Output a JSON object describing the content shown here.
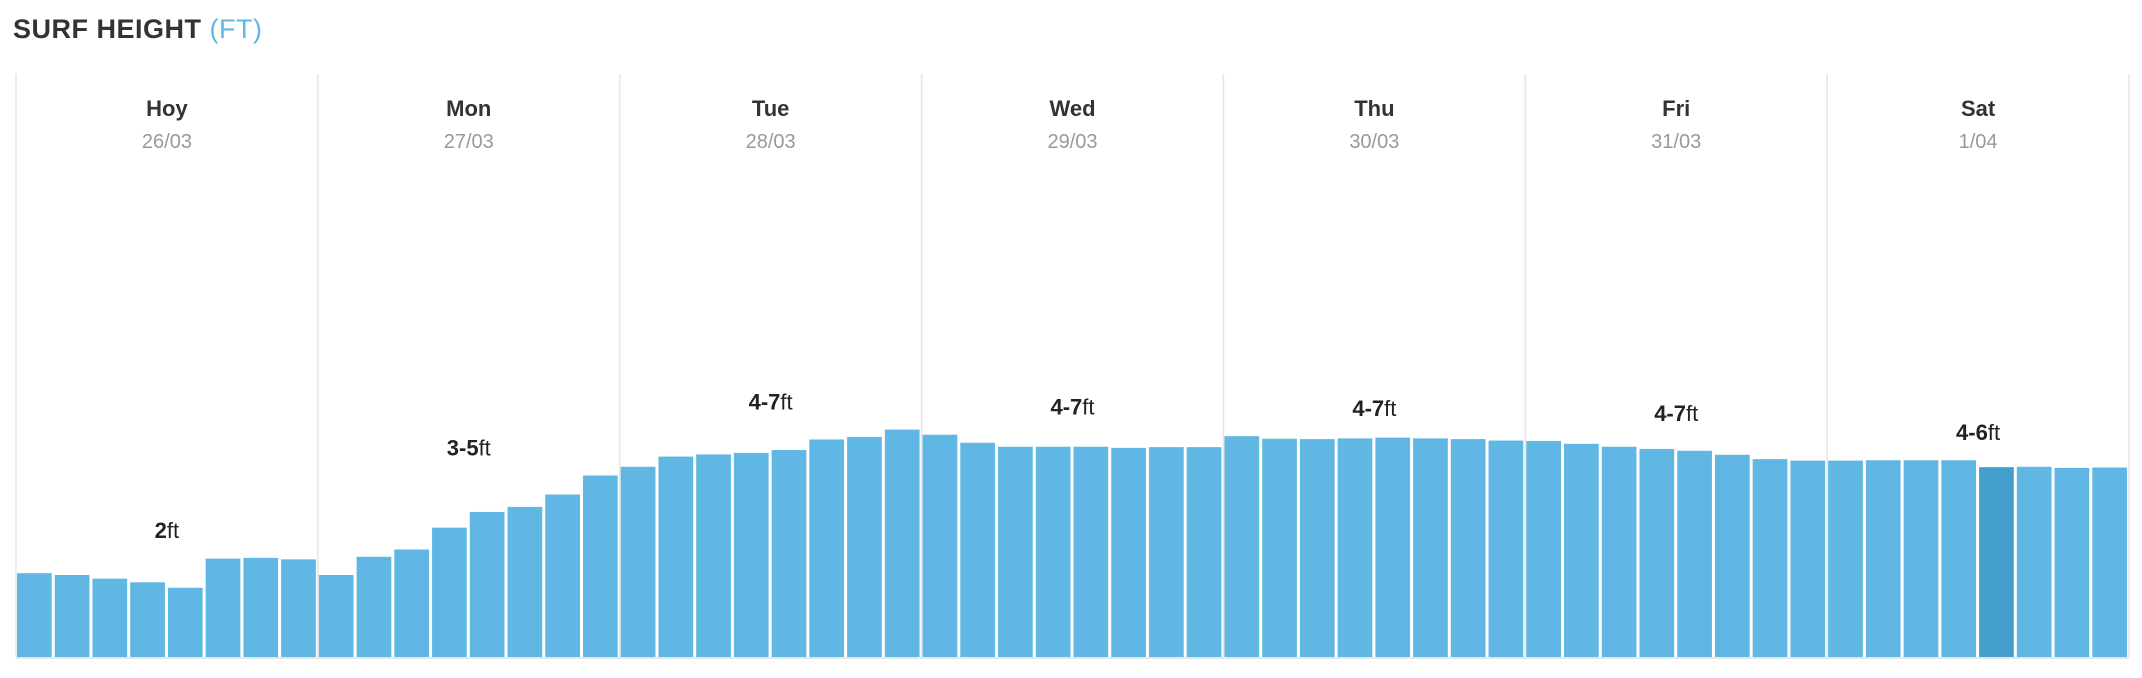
{
  "header": {
    "title": "SURF HEIGHT",
    "unit": "(FT)"
  },
  "colors": {
    "bar": "#61b7e3",
    "bar_selected": "#449fcc",
    "divider": "#e6e6e6",
    "day_text": "#333333",
    "date_text": "#999999",
    "label_text": "#222222"
  },
  "chart_data": {
    "type": "bar",
    "days": [
      {
        "day": "Hoy",
        "date": "26/03",
        "range": "2",
        "unit": "ft",
        "values": [
          2.3,
          2.25,
          2.15,
          2.05,
          1.9,
          2.7,
          2.72,
          2.68
        ]
      },
      {
        "day": "Mon",
        "date": "27/03",
        "range": "3-5",
        "unit": "ft",
        "values": [
          2.25,
          2.75,
          2.95,
          3.55,
          3.98,
          4.12,
          4.46,
          4.98
        ]
      },
      {
        "day": "Tue",
        "date": "28/03",
        "range": "4-7",
        "unit": "ft",
        "values": [
          5.22,
          5.5,
          5.56,
          5.6,
          5.68,
          5.97,
          6.04,
          6.24
        ]
      },
      {
        "day": "Wed",
        "date": "29/03",
        "range": "4-7",
        "unit": "ft",
        "values": [
          6.1,
          5.88,
          5.77,
          5.77,
          5.77,
          5.74,
          5.76,
          5.76
        ]
      },
      {
        "day": "Thu",
        "date": "30/03",
        "range": "4-7",
        "unit": "ft",
        "values": [
          6.06,
          5.99,
          5.98,
          6.0,
          6.02,
          6.0,
          5.98,
          5.94
        ]
      },
      {
        "day": "Fri",
        "date": "31/03",
        "range": "4-7",
        "unit": "ft",
        "values": [
          5.93,
          5.85,
          5.77,
          5.71,
          5.66,
          5.55,
          5.43,
          5.39
        ]
      },
      {
        "day": "Sat",
        "date": "1/04",
        "range": "4-6",
        "unit": "ft",
        "values": [
          5.39,
          5.4,
          5.4,
          5.4,
          5.21,
          5.22,
          5.19,
          5.2
        ]
      }
    ],
    "selected": {
      "day_index": 6,
      "bar_index": 4
    },
    "ylim": [
      0,
      16
    ],
    "grid": false,
    "legend": "none"
  }
}
